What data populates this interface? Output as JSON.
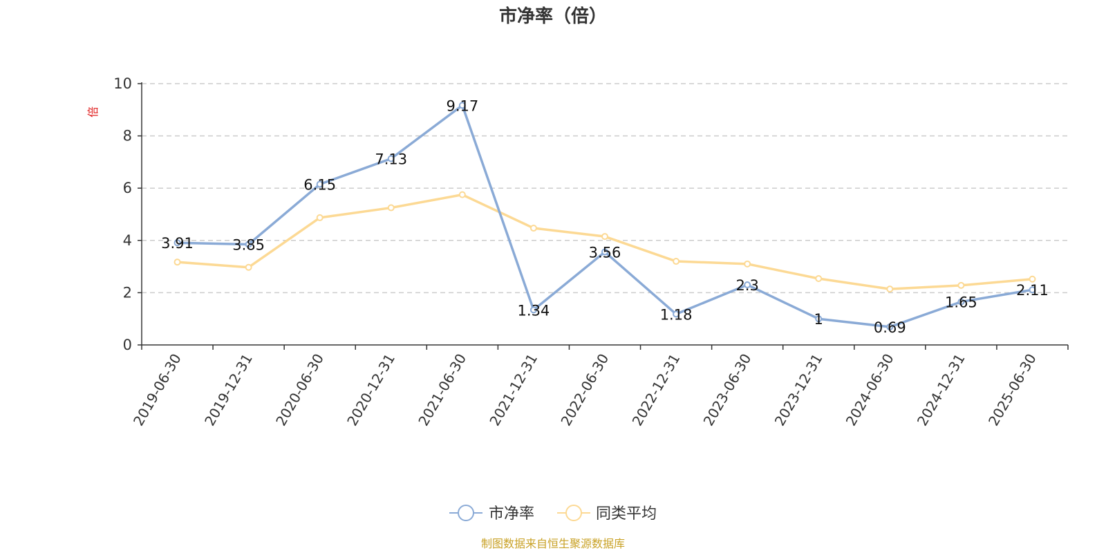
{
  "chart_data": {
    "type": "line",
    "title": "市净率（倍）",
    "ylabel": "倍",
    "categories": [
      "2019-06-30",
      "2019-12-31",
      "2020-06-30",
      "2020-12-31",
      "2021-06-30",
      "2021-12-31",
      "2022-06-30",
      "2022-12-31",
      "2023-06-30",
      "2023-12-31",
      "2024-06-30",
      "2024-12-31",
      "2025-06-30"
    ],
    "ylim": [
      0,
      10
    ],
    "yticks": [
      "0",
      "2",
      "4",
      "6",
      "8",
      "10"
    ],
    "grid": true,
    "legend_position": "bottom",
    "series": [
      {
        "name": "市净率",
        "color": "#8aaad6",
        "values": [
          3.91,
          3.85,
          6.15,
          7.13,
          9.17,
          1.34,
          3.56,
          1.18,
          2.3,
          1,
          0.69,
          1.65,
          2.11
        ],
        "labels": [
          "3.91",
          "3.85",
          "6.15",
          "7.13",
          "9.17",
          "1.34",
          "3.56",
          "1.18",
          "2.3",
          "1",
          "0.69",
          "1.65",
          "2.11"
        ]
      },
      {
        "name": "同类平均",
        "color": "#fcd994",
        "values": [
          3.17,
          2.97,
          4.87,
          5.25,
          5.75,
          4.47,
          4.15,
          3.2,
          3.1,
          2.54,
          2.14,
          2.28,
          2.52
        ]
      }
    ],
    "source": "制图数据来自恒生聚源数据库",
    "colors": {
      "ylabel": "#e02020",
      "source": "#c9a227",
      "grid": "#cccccc",
      "axis": "#333333"
    }
  }
}
